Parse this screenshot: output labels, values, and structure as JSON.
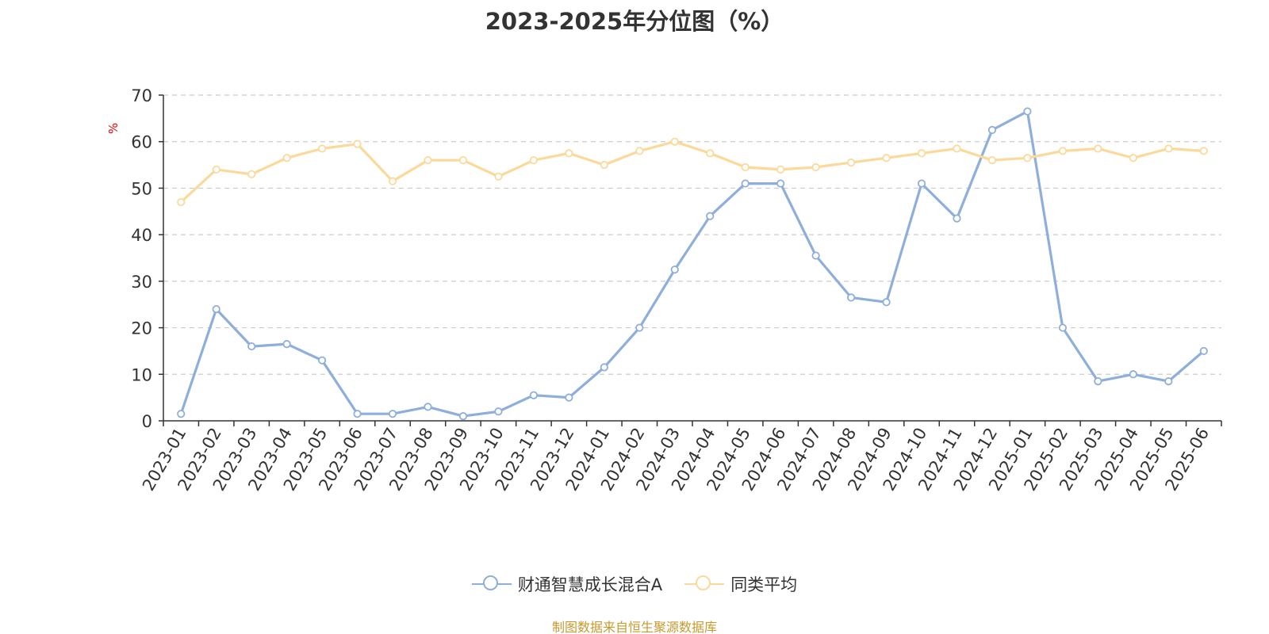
{
  "chart_data": {
    "type": "line",
    "title": "2023-2025年分位图（%）",
    "ylabel": "%",
    "xlabel": "",
    "ylim": [
      0,
      70
    ],
    "yticks": [
      0,
      10,
      20,
      30,
      40,
      50,
      60,
      70
    ],
    "grid": true,
    "legend_position": "bottom",
    "categories": [
      "2023-01",
      "2023-02",
      "2023-03",
      "2023-04",
      "2023-05",
      "2023-06",
      "2023-07",
      "2023-08",
      "2023-09",
      "2023-10",
      "2023-11",
      "2023-12",
      "2024-01",
      "2024-02",
      "2024-03",
      "2024-04",
      "2024-05",
      "2024-06",
      "2024-07",
      "2024-08",
      "2024-09",
      "2024-10",
      "2024-11",
      "2024-12",
      "2025-01",
      "2025-02",
      "2025-03",
      "2025-04",
      "2025-05",
      "2025-06"
    ],
    "series": [
      {
        "name": "财通智慧成长混合A",
        "color": "#8eaedb",
        "values": [
          1.5,
          24,
          16,
          16.5,
          13,
          1.5,
          1.5,
          3,
          1,
          2,
          5.5,
          5,
          11.5,
          20,
          32.5,
          44,
          51,
          51,
          35.5,
          26.5,
          25.5,
          51,
          43.5,
          62.5,
          66.5,
          20,
          8.5,
          10,
          8.5,
          15
        ]
      },
      {
        "name": "同类平均",
        "color": "#fbd99b",
        "values": [
          47,
          54,
          53,
          56.5,
          58.5,
          59.5,
          51.5,
          56,
          56,
          52.5,
          56,
          57.5,
          55,
          58,
          60,
          57.5,
          54.5,
          54,
          54.5,
          55.5,
          56.5,
          57.5,
          58.5,
          56,
          56.5,
          58,
          58.5,
          56.5,
          58.5,
          58
        ]
      }
    ]
  },
  "footer": {
    "source": "制图数据来自恒生聚源数据库"
  }
}
